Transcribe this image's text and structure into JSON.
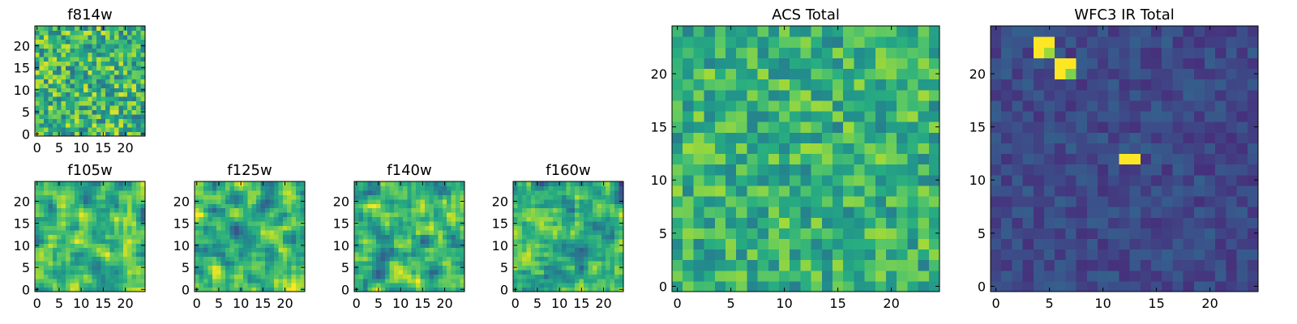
{
  "figure": {
    "background": "#ffffff",
    "colormap": "viridis",
    "colormap_stops": [
      "#440154",
      "#472d7b",
      "#3b528b",
      "#2c728e",
      "#21918c",
      "#28ae80",
      "#5ec962",
      "#addc30",
      "#fde725"
    ]
  },
  "chart_data": [
    {
      "id": "f814w",
      "type": "heatmap",
      "title": "f814w",
      "grid_size": 25,
      "xlim": [
        0,
        24
      ],
      "ylim": [
        0,
        24
      ],
      "xticks": [
        "0",
        "5",
        "10",
        "15",
        "20"
      ],
      "yticks": [
        "0",
        "5",
        "10",
        "15",
        "20"
      ],
      "value_range": [
        0,
        1
      ],
      "texture": "noise",
      "mean": 0.66,
      "spread": 0.24,
      "seed": 11
    },
    {
      "id": "f105w",
      "type": "heatmap",
      "title": "f105w",
      "grid_size": 25,
      "xlim": [
        0,
        24
      ],
      "ylim": [
        0,
        24
      ],
      "xticks": [
        "0",
        "5",
        "10",
        "15",
        "20"
      ],
      "yticks": [
        "0",
        "5",
        "10",
        "15",
        "20"
      ],
      "value_range": [
        0,
        1
      ],
      "texture": "smooth",
      "mean": 0.68,
      "spread": 0.22,
      "seed": 23
    },
    {
      "id": "f125w",
      "type": "heatmap",
      "title": "f125w",
      "grid_size": 25,
      "xlim": [
        0,
        24
      ],
      "ylim": [
        0,
        24
      ],
      "xticks": [
        "0",
        "5",
        "10",
        "15",
        "20"
      ],
      "yticks": [
        "0",
        "5",
        "10",
        "15",
        "20"
      ],
      "value_range": [
        0,
        1
      ],
      "texture": "smooth",
      "mean": 0.64,
      "spread": 0.24,
      "seed": 37
    },
    {
      "id": "f140w",
      "type": "heatmap",
      "title": "f140w",
      "grid_size": 25,
      "xlim": [
        0,
        24
      ],
      "ylim": [
        0,
        24
      ],
      "xticks": [
        "0",
        "5",
        "10",
        "15",
        "20"
      ],
      "yticks": [
        "0",
        "5",
        "10",
        "15",
        "20"
      ],
      "value_range": [
        0,
        1
      ],
      "texture": "smooth",
      "mean": 0.66,
      "spread": 0.24,
      "seed": 41
    },
    {
      "id": "f160w",
      "type": "heatmap",
      "title": "f160w",
      "grid_size": 25,
      "xlim": [
        0,
        24
      ],
      "ylim": [
        0,
        24
      ],
      "xticks": [
        "0",
        "5",
        "10",
        "15",
        "20"
      ],
      "yticks": [
        "0",
        "5",
        "10",
        "15",
        "20"
      ],
      "value_range": [
        0,
        1
      ],
      "texture": "smooth",
      "mean": 0.65,
      "spread": 0.25,
      "seed": 53
    },
    {
      "id": "acs-total",
      "type": "heatmap",
      "title": "ACS Total",
      "grid_size": 25,
      "xlim": [
        0,
        24
      ],
      "ylim": [
        0,
        24
      ],
      "xticks": [
        "0",
        "5",
        "10",
        "15",
        "20"
      ],
      "yticks": [
        "0",
        "5",
        "10",
        "15",
        "20"
      ],
      "value_range": [
        0,
        1
      ],
      "texture": "noise",
      "mean": 0.64,
      "spread": 0.18,
      "seed": 67
    },
    {
      "id": "wfc3-ir-total",
      "type": "heatmap",
      "title": "WFC3 IR Total",
      "grid_size": 25,
      "xlim": [
        0,
        24
      ],
      "ylim": [
        0,
        24
      ],
      "xticks": [
        "0",
        "5",
        "10",
        "15",
        "20"
      ],
      "yticks": [
        "0",
        "5",
        "10",
        "15",
        "20"
      ],
      "value_range": [
        0,
        1
      ],
      "texture": "noise",
      "mean": 0.22,
      "spread": 0.07,
      "seed": 79,
      "hot_pixels": [
        {
          "x": 4,
          "y": 23,
          "value": 1.0
        },
        {
          "x": 5,
          "y": 23,
          "value": 1.0
        },
        {
          "x": 4,
          "y": 22,
          "value": 1.0
        },
        {
          "x": 5,
          "y": 22,
          "value": 0.85
        },
        {
          "x": 6,
          "y": 21,
          "value": 1.0
        },
        {
          "x": 7,
          "y": 21,
          "value": 1.0
        },
        {
          "x": 6,
          "y": 20,
          "value": 1.0
        },
        {
          "x": 7,
          "y": 20,
          "value": 0.8
        },
        {
          "x": 12,
          "y": 12,
          "value": 1.0
        },
        {
          "x": 13,
          "y": 12,
          "value": 1.0
        }
      ]
    }
  ]
}
